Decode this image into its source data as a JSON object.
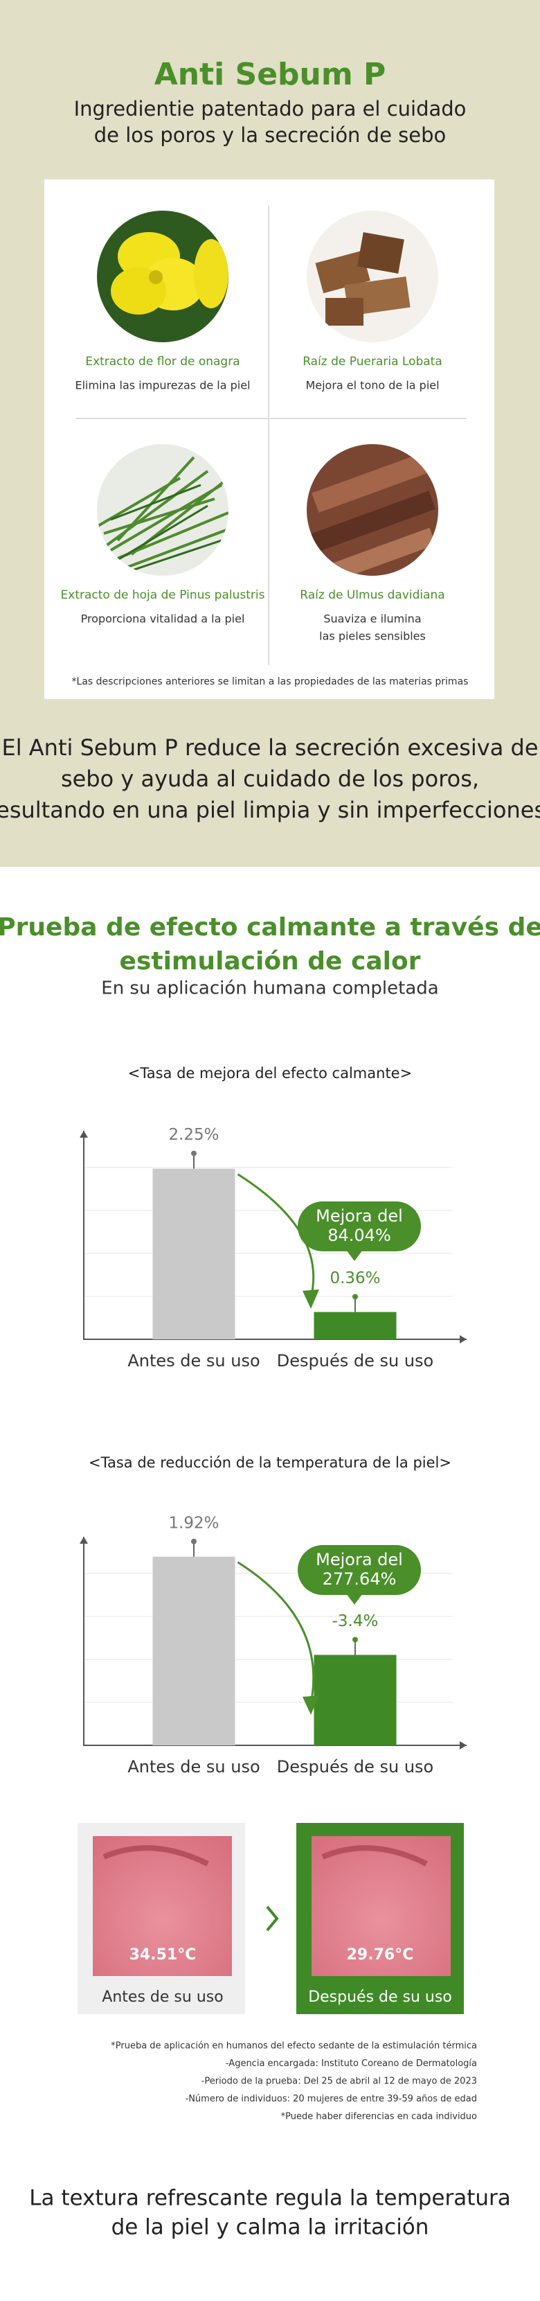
{
  "header": {
    "title": "Anti Sebum P",
    "subtitle": [
      "Ingredientie patentado para el cuidado",
      "de los poros y la secreción de sebo"
    ]
  },
  "ingredients": [
    {
      "name": "Extracto de flor de onagra",
      "description": [
        "Elimina las impurezas de la piel"
      ]
    },
    {
      "name": "Raíz de Pueraria Lobata",
      "description": [
        "Mejora el tono de la piel"
      ]
    },
    {
      "name": "Extracto de hoja de Pinus palustris",
      "description": [
        "Proporciona vitalidad a la piel"
      ]
    },
    {
      "name": "Raíz de Ulmus davidiana",
      "description": [
        "Suaviza e ilumina",
        "las pieles sensibles"
      ]
    }
  ],
  "ingredients_note": "*Las descripciones anteriores se limitan a las propiedades de las materias primas",
  "summary": [
    "El Anti Sebum P reduce la secreción excesiva de",
    "sebo y ayuda al cuidado de los poros,",
    "resultando en una piel limpia y sin imperfecciones."
  ],
  "test": {
    "title": [
      "Prueba de efecto calmante a través de",
      "estimulación de calor"
    ],
    "subtitle": "En su aplicación humana completada"
  },
  "chart_data": [
    {
      "type": "bar",
      "title": "<Tasa de mejora del efecto calmante>",
      "categories": [
        "Antes de su uso",
        "Después de su uso"
      ],
      "values": [
        2.25,
        0.36
      ],
      "value_labels": [
        "2.25%",
        "0.36%"
      ],
      "colors": [
        "#c9c9c9",
        "#3f8a26"
      ],
      "ylim": [
        0,
        2.75
      ],
      "annotation": [
        "Mejora del",
        "84.04%"
      ]
    },
    {
      "type": "bar",
      "title": "<Tasa de reducción de la temperatura de la piel>",
      "categories": [
        "Antes de su uso",
        "Después de su uso"
      ],
      "values": [
        1.92,
        -3.4
      ],
      "value_labels": [
        "1.92%",
        "-3.4%"
      ],
      "colors": [
        "#c9c9c9",
        "#3f8a26"
      ],
      "ylim": [
        -8.3,
        3
      ],
      "annotation": [
        "Mejora del",
        "277.64%"
      ]
    }
  ],
  "thermal": [
    {
      "temperature": "34.51°C",
      "caption": "Antes de su uso"
    },
    {
      "temperature": "29.76°C",
      "caption": "Después de su uso"
    }
  ],
  "notes": [
    "*Prueba de aplicación en humanos del efecto sedante de la estimulación térmica",
    "-Agencia encargada: Instituto Coreano de Dermatología",
    "-Periodo de la prueba:  Del 25 de abril al 12 de mayo de 2023",
    "-Número de individuos: 20 mujeres de entre 39-59 años de edad",
    "*Puede haber diferencias en cada individuo"
  ],
  "closing": [
    "La textura refrescante regula la temperatura",
    "de la piel y calma la irritación"
  ]
}
